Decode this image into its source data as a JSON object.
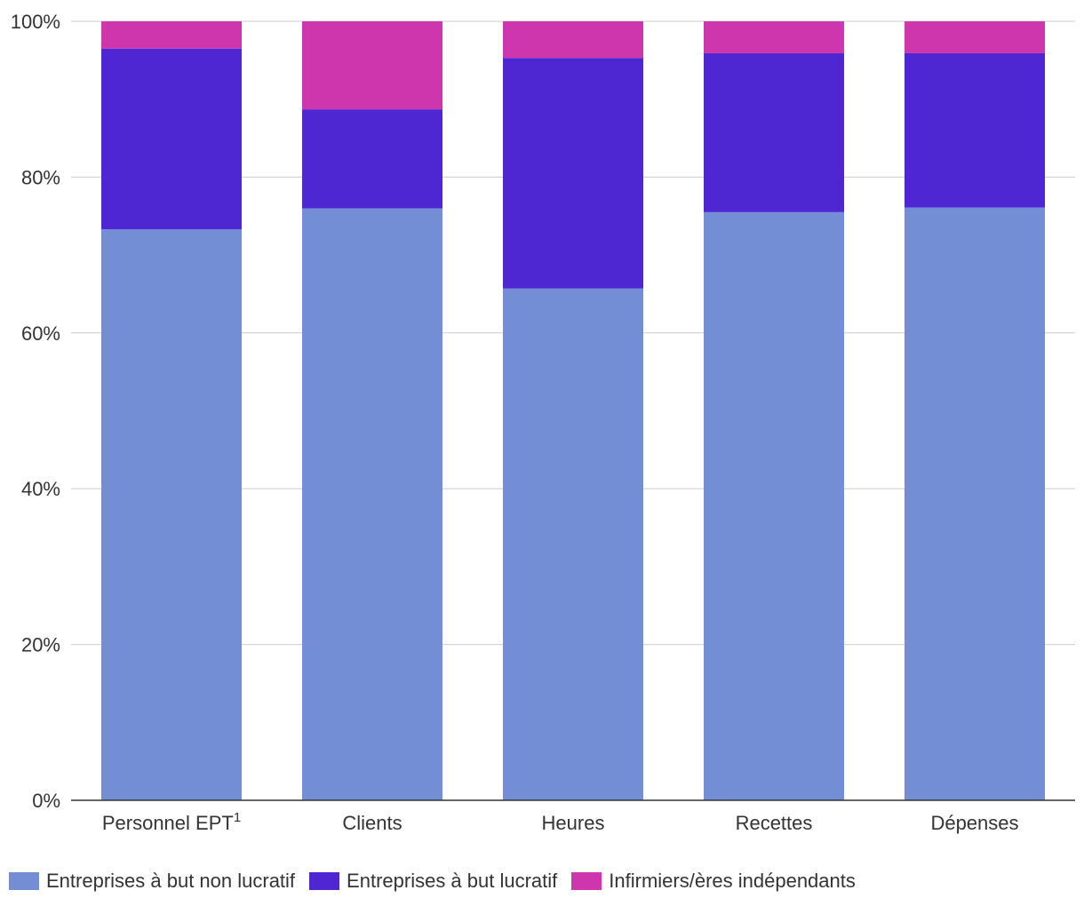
{
  "chart_data": {
    "type": "bar",
    "stacked": true,
    "percent": true,
    "title": "",
    "xlabel": "",
    "ylabel": "",
    "ylim": [
      0,
      100
    ],
    "yticks": [
      0,
      20,
      40,
      60,
      80,
      100
    ],
    "ytick_labels": [
      "0%",
      "20%",
      "40%",
      "60%",
      "80%",
      "100%"
    ],
    "grid": true,
    "legend_position": "bottom-left",
    "categories": [
      {
        "label": "Personnel EPT",
        "sup": "1"
      },
      {
        "label": "Clients",
        "sup": ""
      },
      {
        "label": "Heures",
        "sup": ""
      },
      {
        "label": "Recettes",
        "sup": ""
      },
      {
        "label": "Dépenses",
        "sup": ""
      }
    ],
    "series": [
      {
        "name": "Entreprises à but non lucratif",
        "color": "#748ed6",
        "values": [
          73.3,
          76.0,
          65.7,
          75.5,
          76.1
        ]
      },
      {
        "name": "Entreprises à but lucratif",
        "color": "#4f27d2",
        "values": [
          23.2,
          12.7,
          29.6,
          20.4,
          19.8
        ]
      },
      {
        "name": "Infirmiers/ères indépendants",
        "color": "#cd36ad",
        "values": [
          3.5,
          11.3,
          4.7,
          4.1,
          4.1
        ]
      }
    ]
  }
}
